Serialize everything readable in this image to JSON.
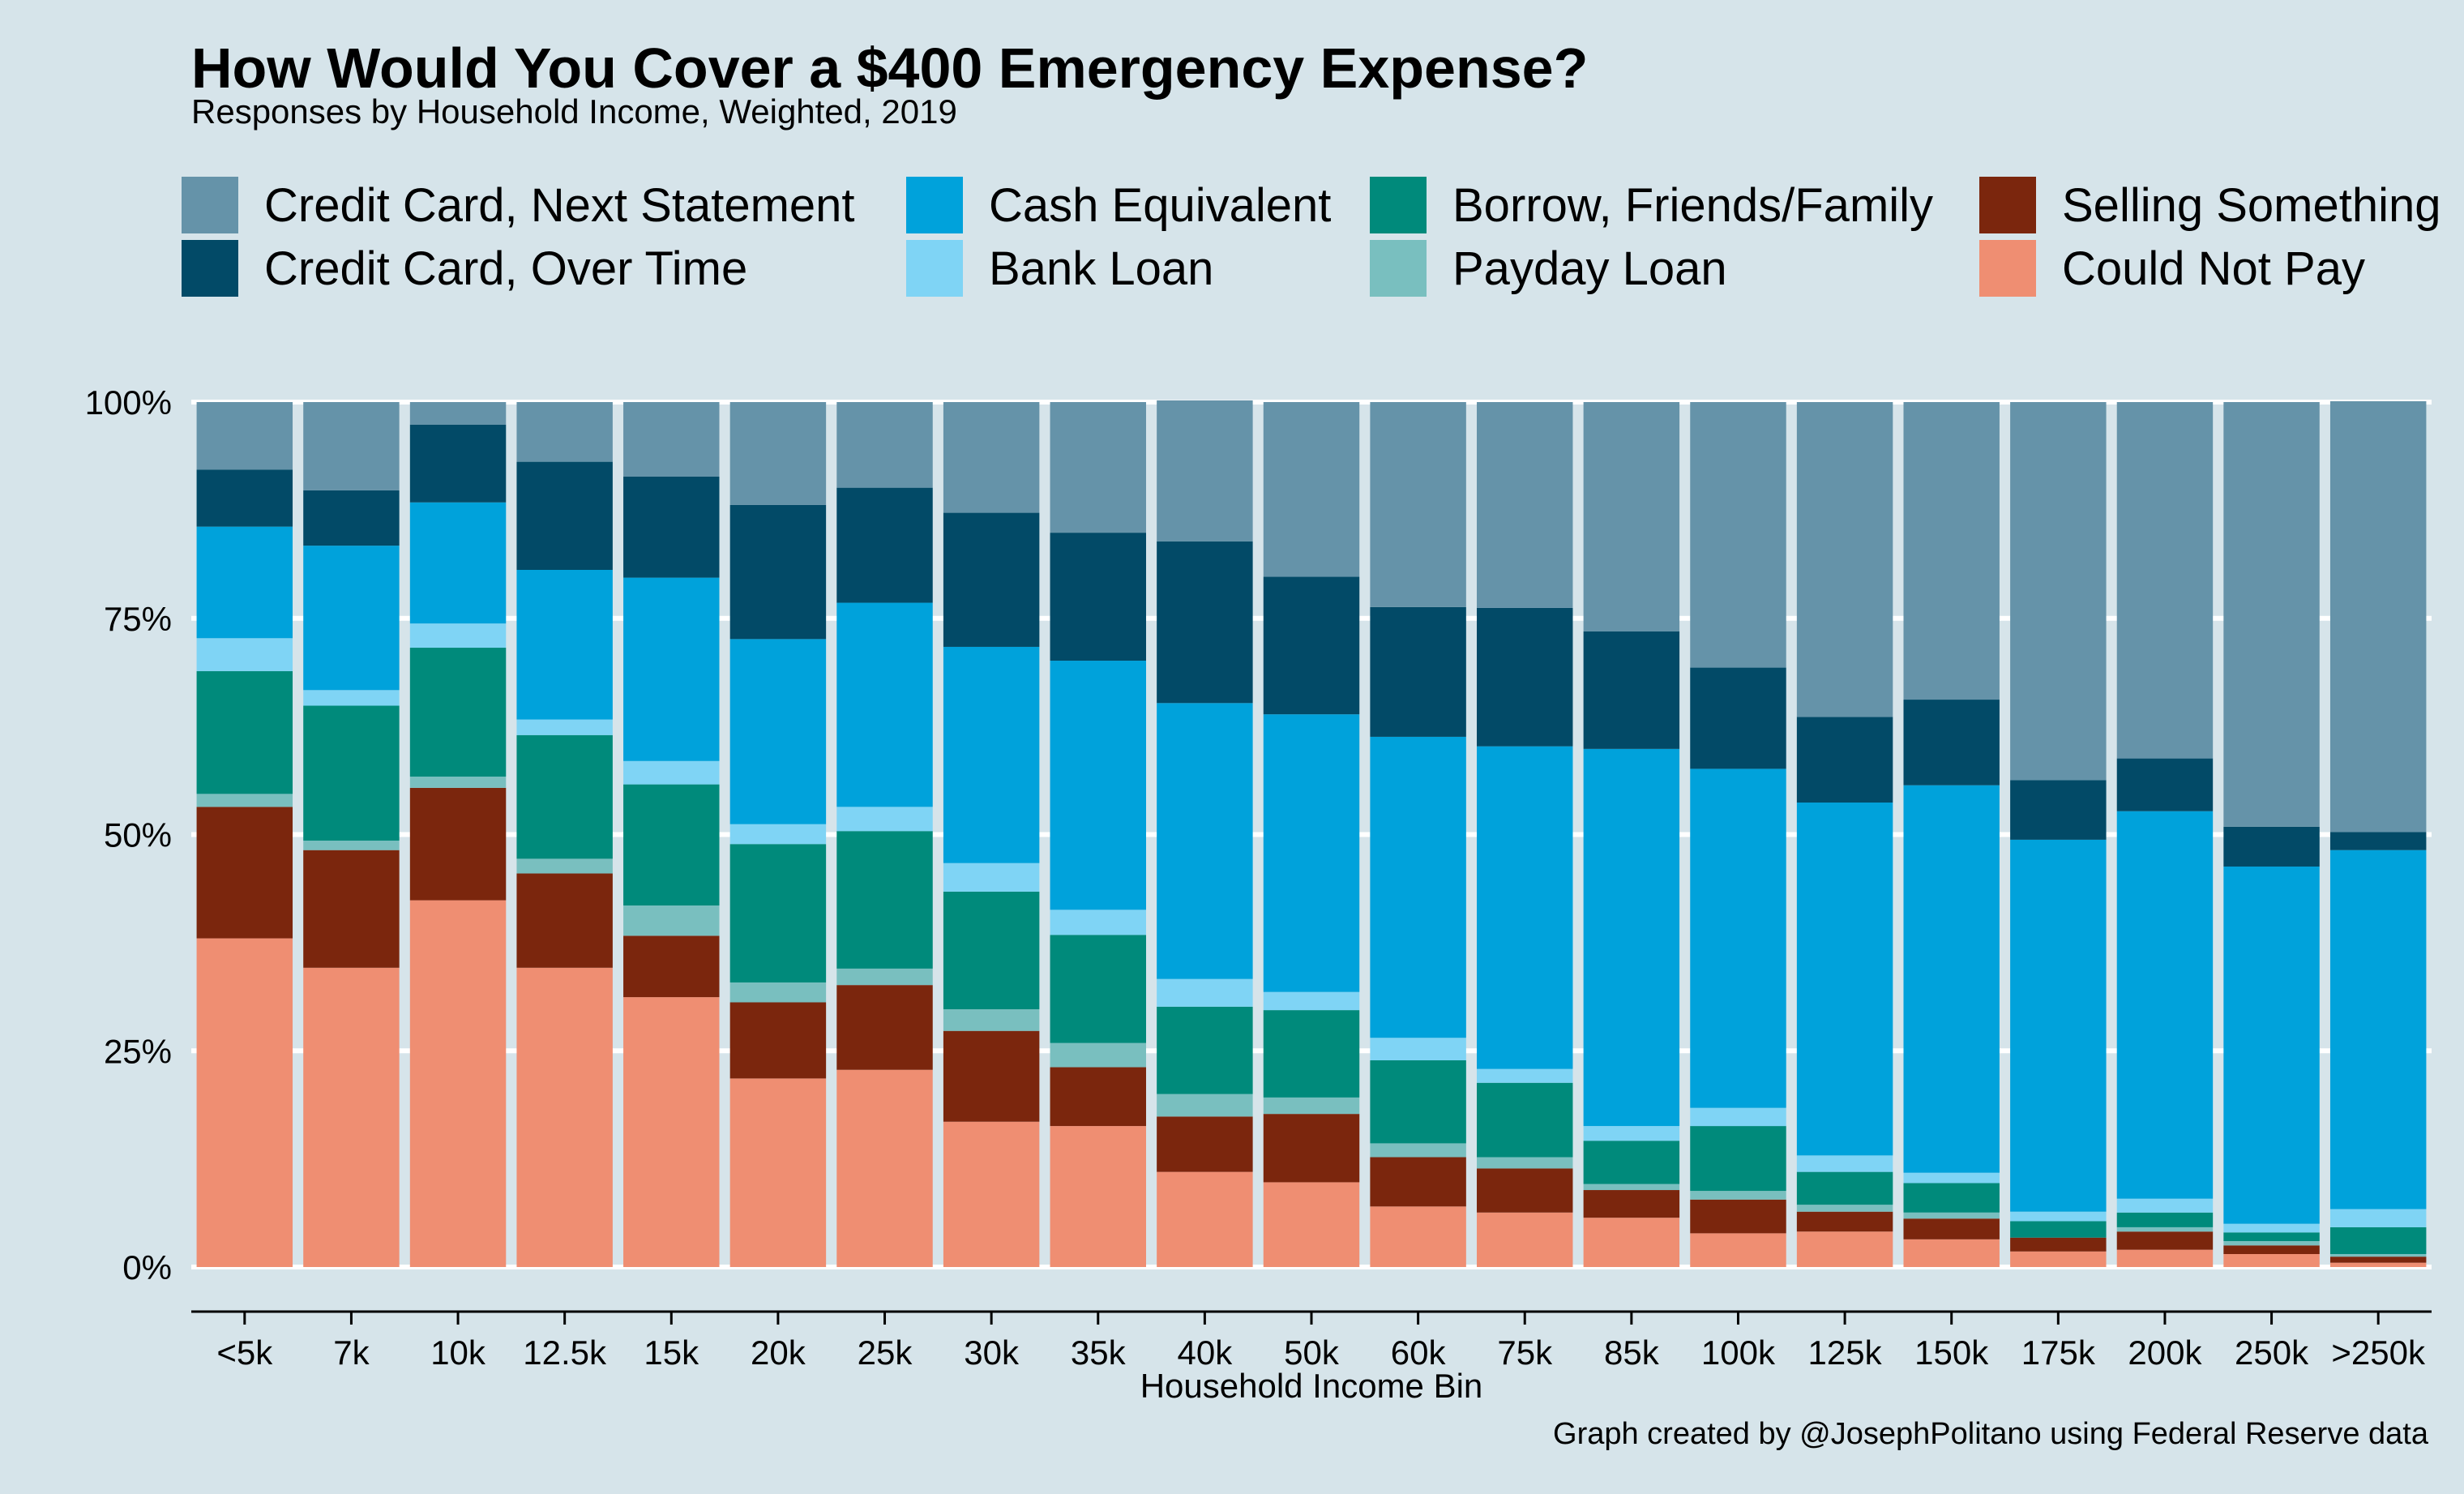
{
  "title": "How Would You Cover a $400 Emergency Expense?",
  "subtitle": "Responses by Household Income, Weighted, 2019",
  "caption": "Graph created by @JosephPolitano using Federal Reserve data",
  "colors": {
    "background": "#d6e4ea",
    "grid": "#ffffff",
    "axis": "#000000"
  },
  "chart_data": {
    "type": "bar",
    "stacked": true,
    "title": "How Would You Cover a $400 Emergency Expense?",
    "subtitle": "Responses by Household Income, Weighted, 2019",
    "xlabel": "Household Income Bin",
    "ylabel": "",
    "ylim": [
      0,
      100
    ],
    "y_ticks": [
      "0%",
      "25%",
      "50%",
      "75%",
      "100%"
    ],
    "grid": true,
    "legend_position": "top",
    "categories": [
      "<5k",
      "7k",
      "10k",
      "12.5k",
      "15k",
      "20k",
      "25k",
      "30k",
      "35k",
      "40k",
      "50k",
      "60k",
      "75k",
      "85k",
      "100k",
      "125k",
      "150k",
      "175k",
      "200k",
      "250k",
      ">250k"
    ],
    "series": [
      {
        "name": "Could Not Pay",
        "color": "#ef8e72",
        "values": [
          38.0,
          34.6,
          42.4,
          34.6,
          31.2,
          21.8,
          22.8,
          16.8,
          16.3,
          11.0,
          9.8,
          7.0,
          6.3,
          5.7,
          3.9,
          4.1,
          3.2,
          1.8,
          2.0,
          1.5,
          0.5
        ]
      },
      {
        "name": "Selling Something",
        "color": "#7b260d",
        "values": [
          15.2,
          13.6,
          13.0,
          10.9,
          7.1,
          8.8,
          9.8,
          10.5,
          6.8,
          6.4,
          7.9,
          5.7,
          5.1,
          3.2,
          3.9,
          2.3,
          2.4,
          1.6,
          2.1,
          1.0,
          0.7
        ]
      },
      {
        "name": "Payday Loan",
        "color": "#79bfbf",
        "values": [
          1.5,
          1.1,
          1.3,
          1.7,
          3.5,
          2.3,
          1.9,
          2.5,
          2.8,
          2.6,
          1.9,
          1.6,
          1.3,
          0.7,
          1.0,
          0.8,
          0.7,
          0.0,
          0.5,
          0.5,
          0.3
        ]
      },
      {
        "name": "Borrow, Friends/Family",
        "color": "#008a7b",
        "values": [
          14.2,
          15.6,
          14.9,
          14.3,
          14.0,
          16.0,
          15.9,
          13.6,
          12.5,
          10.1,
          10.1,
          9.6,
          8.6,
          5.0,
          7.5,
          3.8,
          3.4,
          1.9,
          1.7,
          1.0,
          3.1
        ]
      },
      {
        "name": "Bank Loan",
        "color": "#7fd4f5",
        "values": [
          3.8,
          1.8,
          2.8,
          1.8,
          2.7,
          2.3,
          2.8,
          3.3,
          2.9,
          3.2,
          2.1,
          2.6,
          1.6,
          1.7,
          2.1,
          1.9,
          1.2,
          1.1,
          1.6,
          1.0,
          2.1
        ]
      },
      {
        "name": "Cash Equivalent",
        "color": "#00a2db",
        "values": [
          12.9,
          16.7,
          14.0,
          17.3,
          21.2,
          21.4,
          23.6,
          25.0,
          28.8,
          31.9,
          32.1,
          34.8,
          37.3,
          43.6,
          39.2,
          40.8,
          44.8,
          43.0,
          44.8,
          41.3,
          41.5
        ]
      },
      {
        "name": "Credit Card, Over Time",
        "color": "#024a67",
        "values": [
          6.6,
          6.4,
          9.0,
          12.5,
          11.7,
          15.5,
          13.3,
          15.5,
          14.8,
          18.7,
          15.9,
          15.0,
          16.0,
          13.6,
          11.7,
          9.9,
          9.9,
          6.9,
          6.1,
          4.6,
          2.1
        ]
      },
      {
        "name": "Credit Card, Next Statement",
        "color": "#6593a9",
        "values": [
          7.8,
          10.2,
          2.6,
          6.9,
          8.6,
          11.9,
          9.9,
          12.8,
          15.1,
          16.3,
          20.2,
          23.7,
          23.8,
          26.5,
          30.7,
          36.4,
          34.4,
          43.7,
          41.2,
          49.1,
          49.8
        ]
      }
    ]
  },
  "legend": [
    {
      "label": "Credit Card, Next Statement",
      "color": "#6593a9"
    },
    {
      "label": "Credit Card, Over Time",
      "color": "#024a67"
    },
    {
      "label": "Cash Equivalent",
      "color": "#00a2db"
    },
    {
      "label": "Bank Loan",
      "color": "#7fd4f5"
    },
    {
      "label": "Borrow, Friends/Family",
      "color": "#008a7b"
    },
    {
      "label": "Payday Loan",
      "color": "#79bfbf"
    },
    {
      "label": "Selling Something",
      "color": "#7b260d"
    },
    {
      "label": "Could Not Pay",
      "color": "#ef8e72"
    }
  ]
}
